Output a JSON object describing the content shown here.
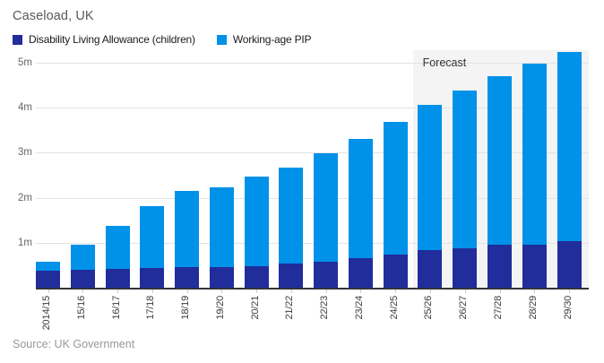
{
  "header": {
    "title": "Caseload, UK"
  },
  "footer": {
    "source": "Source: UK Government"
  },
  "colors": {
    "dla": "#202D9B",
    "pip": "#0092E8",
    "gridline": "#E3E3E3",
    "axis": "#33333D",
    "forecast_background": "#F4F4F4",
    "title_text": "#595959",
    "source_text": "#999999"
  },
  "chart_data": {
    "type": "bar",
    "stacked": true,
    "title": "Caseload, UK",
    "xlabel": "",
    "ylabel": "",
    "unit": "millions of people",
    "ylim": [
      0,
      5.28
    ],
    "grid": true,
    "legend_position": "top",
    "y_ticks": [
      "1m",
      "2m",
      "3m",
      "4m",
      "5m"
    ],
    "y_tick_values": [
      1,
      2,
      3,
      4,
      5
    ],
    "categories": [
      "2014/15",
      "15/16",
      "16/17",
      "17/18",
      "18/19",
      "19/20",
      "20/21",
      "21/22",
      "22/23",
      "23/24",
      "24/25",
      "25/26",
      "26/27",
      "27/28",
      "28/29",
      "29/30"
    ],
    "series": [
      {
        "name": "Disability Living Allowance (children)",
        "color": "#202D9B",
        "values": [
          0.37,
          0.4,
          0.42,
          0.44,
          0.46,
          0.46,
          0.48,
          0.53,
          0.57,
          0.66,
          0.73,
          0.83,
          0.88,
          0.95,
          0.96,
          1.04
        ]
      },
      {
        "name": "Working-age PIP",
        "color": "#0092E8",
        "values": [
          0.2,
          0.55,
          0.95,
          1.37,
          1.69,
          1.77,
          2.0,
          2.13,
          2.42,
          2.65,
          2.96,
          3.23,
          3.51,
          3.75,
          4.03,
          4.19
        ]
      }
    ],
    "totals": [
      0.57,
      0.95,
      1.37,
      1.81,
      2.15,
      2.23,
      2.48,
      2.66,
      2.99,
      3.31,
      3.69,
      4.06,
      4.39,
      4.7,
      4.99,
      5.23
    ],
    "forecast": {
      "label": "Forecast",
      "start_category": "25/26"
    }
  }
}
